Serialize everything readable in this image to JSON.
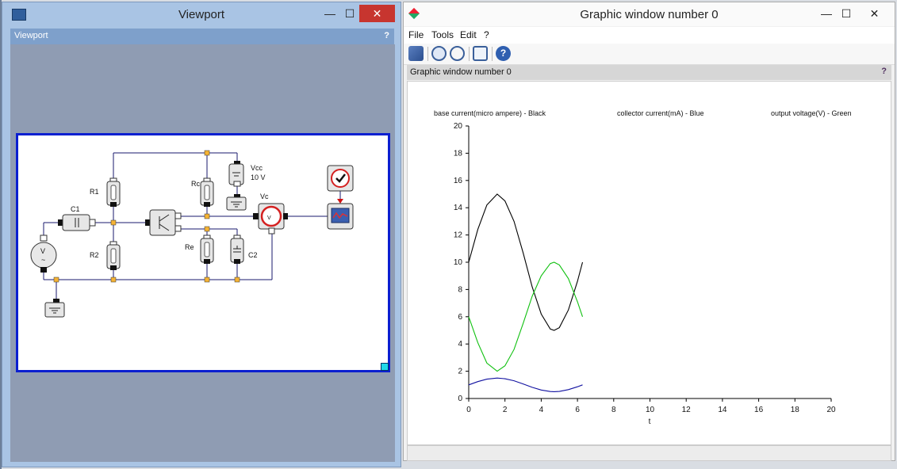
{
  "viewport": {
    "title": "Viewport",
    "panel_title": "Viewport",
    "help": "?",
    "btn_minimize": "—",
    "btn_maximize": "☐",
    "btn_close": "✕",
    "diagram": {
      "labels": {
        "c1": "C1",
        "r1": "R1",
        "r2": "R2",
        "rc": "Rc",
        "re": "Re",
        "c2": "C2",
        "vcc_name": "Vcc",
        "vcc_value": "10 V",
        "vc": "Vc",
        "source_v": "V",
        "source_wave": "~",
        "probe_v": "V"
      }
    }
  },
  "graphic": {
    "title": "Graphic window number 0",
    "panel_title": "Graphic window number 0",
    "help": "?",
    "btn_minimize": "—",
    "btn_maximize": "☐",
    "btn_close": "✕",
    "menu": [
      "File",
      "Tools",
      "Edit",
      "?"
    ],
    "toolbar_icons": [
      "rotate-icon",
      "zoom-in-icon",
      "zoom-out-icon",
      "window-icon",
      "help-icon"
    ]
  },
  "chart_data": {
    "type": "line",
    "legend_texts": [
      "base current(micro ampere) - Black",
      "collector current(mA) -  Blue",
      "output voltage(V) - Green"
    ],
    "xlabel": "t",
    "ylabel": "",
    "xlim": [
      0,
      20
    ],
    "ylim": [
      0,
      20
    ],
    "xticks": [
      0,
      2,
      4,
      6,
      8,
      10,
      12,
      14,
      16,
      18,
      20
    ],
    "yticks": [
      0,
      2,
      4,
      6,
      8,
      10,
      12,
      14,
      16,
      18,
      20
    ],
    "x": [
      0,
      0.5,
      1,
      1.5708,
      2,
      2.5,
      3,
      3.5,
      4,
      4.5,
      4.7124,
      5,
      5.5,
      6,
      6.28
    ],
    "series": [
      {
        "name": "base current (Black)",
        "color": "#000000",
        "values": [
          10.0,
          12.4,
          14.2,
          15.0,
          14.5,
          13.0,
          10.7,
          8.2,
          6.2,
          5.1,
          5.0,
          5.2,
          6.5,
          8.6,
          10.0
        ]
      },
      {
        "name": "collector current (Blue)",
        "color": "#1010a0",
        "values": [
          1.0,
          1.24,
          1.42,
          1.5,
          1.45,
          1.3,
          1.07,
          0.82,
          0.62,
          0.51,
          0.5,
          0.52,
          0.65,
          0.86,
          1.0
        ]
      },
      {
        "name": "output voltage (Green)",
        "color": "#10c010",
        "values": [
          6.0,
          4.1,
          2.6,
          2.0,
          2.4,
          3.6,
          5.5,
          7.5,
          9.0,
          9.9,
          10.0,
          9.8,
          8.8,
          7.1,
          6.0
        ]
      }
    ]
  }
}
